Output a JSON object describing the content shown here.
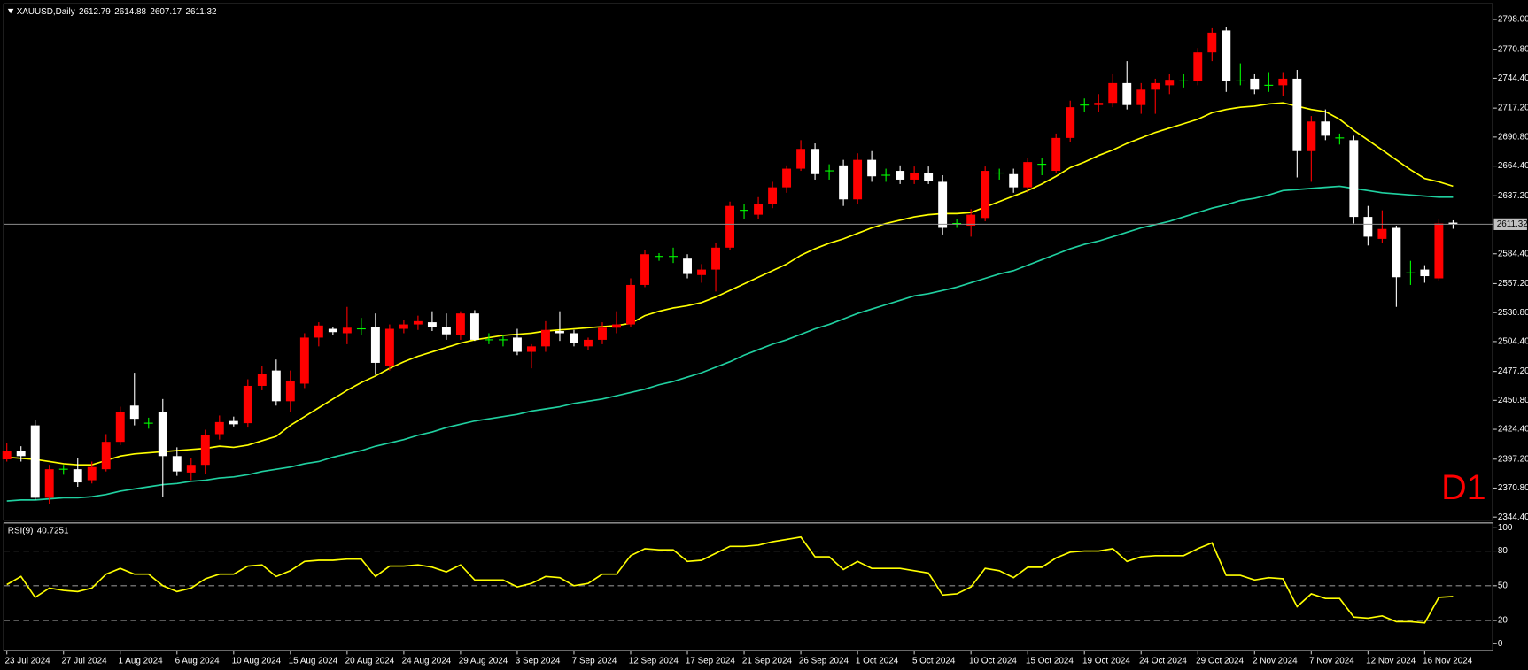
{
  "chart_data": [
    {
      "type": "candlestick",
      "title": "XAUUSD,Daily",
      "annotation": "D1",
      "up_color": "#ff0000",
      "down_color": "#ffffff",
      "doji_color": "#00ff00",
      "price_line_color": "#8c8c8c",
      "categories": [
        "23 Jul 2024",
        null,
        null,
        null,
        "27 Jul 2024",
        null,
        null,
        null,
        "1 Aug 2024",
        null,
        null,
        null,
        "6 Aug 2024",
        null,
        null,
        null,
        "10 Aug 2024",
        null,
        null,
        null,
        "15 Aug 2024",
        null,
        null,
        null,
        "20 Aug 2024",
        null,
        null,
        null,
        "24 Aug 2024",
        null,
        null,
        null,
        "29 Aug 2024",
        null,
        null,
        null,
        "3 Sep 2024",
        null,
        null,
        null,
        "7 Sep 2024",
        null,
        null,
        null,
        "12 Sep 2024",
        null,
        null,
        null,
        "17 Sep 2024",
        null,
        null,
        null,
        "21 Sep 2024",
        null,
        null,
        null,
        "26 Sep 2024",
        null,
        null,
        null,
        "1 Oct 2024",
        null,
        null,
        null,
        "5 Oct 2024",
        null,
        null,
        null,
        "10 Oct 2024",
        null,
        null,
        null,
        "15 Oct 2024",
        null,
        null,
        null,
        "19 Oct 2024",
        null,
        null,
        null,
        "24 Oct 2024",
        null,
        null,
        null,
        "29 Oct 2024",
        null,
        null,
        null,
        "2 Nov 2024",
        null,
        null,
        null,
        "7 Nov 2024",
        null,
        null,
        null,
        "12 Nov 2024",
        null,
        null,
        null,
        "16 Nov 2024",
        null,
        null
      ],
      "ohlc": [
        [
          2397,
          2412,
          2395,
          2405
        ],
        [
          2405,
          2409,
          2395,
          2400
        ],
        [
          2428,
          2433,
          2360,
          2362
        ],
        [
          2362,
          2392,
          2356,
          2388
        ],
        [
          2388,
          2392,
          2383,
          2388
        ],
        [
          2388,
          2398,
          2372,
          2376
        ],
        [
          2378,
          2395,
          2375,
          2390
        ],
        [
          2388,
          2420,
          2386,
          2413
        ],
        [
          2413,
          2445,
          2410,
          2440
        ],
        [
          2446,
          2476,
          2428,
          2434
        ],
        [
          2430,
          2435,
          2425,
          2430
        ],
        [
          2440,
          2452,
          2363,
          2400
        ],
        [
          2400,
          2408,
          2382,
          2386
        ],
        [
          2385,
          2398,
          2378,
          2392
        ],
        [
          2392,
          2424,
          2384,
          2419
        ],
        [
          2420,
          2437,
          2415,
          2431
        ],
        [
          2432,
          2436,
          2427,
          2429
        ],
        [
          2430,
          2470,
          2426,
          2464
        ],
        [
          2464,
          2482,
          2460,
          2475
        ],
        [
          2478,
          2488,
          2446,
          2450
        ],
        [
          2450,
          2478,
          2440,
          2468
        ],
        [
          2466,
          2512,
          2462,
          2508
        ],
        [
          2508,
          2522,
          2500,
          2519
        ],
        [
          2516,
          2518,
          2510,
          2513
        ],
        [
          2512,
          2536,
          2502,
          2517
        ],
        [
          2516,
          2526,
          2510,
          2516
        ],
        [
          2518,
          2530,
          2474,
          2485
        ],
        [
          2482,
          2520,
          2478,
          2516
        ],
        [
          2516,
          2524,
          2512,
          2520
        ],
        [
          2520,
          2528,
          2515,
          2523
        ],
        [
          2522,
          2532,
          2514,
          2518
        ],
        [
          2518,
          2530,
          2506,
          2511
        ],
        [
          2510,
          2532,
          2506,
          2530
        ],
        [
          2530,
          2533,
          2505,
          2506
        ],
        [
          2506,
          2512,
          2502,
          2506
        ],
        [
          2506,
          2510,
          2500,
          2506
        ],
        [
          2508,
          2516,
          2492,
          2495
        ],
        [
          2495,
          2502,
          2480,
          2500
        ],
        [
          2500,
          2523,
          2495,
          2515
        ],
        [
          2514,
          2532,
          2505,
          2512
        ],
        [
          2512,
          2515,
          2500,
          2503
        ],
        [
          2500,
          2508,
          2497,
          2506
        ],
        [
          2506,
          2522,
          2502,
          2517
        ],
        [
          2517,
          2532,
          2512,
          2520
        ],
        [
          2520,
          2562,
          2518,
          2556
        ],
        [
          2556,
          2588,
          2554,
          2584
        ],
        [
          2582,
          2585,
          2578,
          2582
        ],
        [
          2582,
          2590,
          2576,
          2582
        ],
        [
          2580,
          2584,
          2562,
          2566
        ],
        [
          2565,
          2575,
          2558,
          2570
        ],
        [
          2570,
          2594,
          2550,
          2590
        ],
        [
          2590,
          2632,
          2588,
          2628
        ],
        [
          2624,
          2630,
          2616,
          2624
        ],
        [
          2620,
          2636,
          2616,
          2630
        ],
        [
          2630,
          2650,
          2626,
          2645
        ],
        [
          2645,
          2665,
          2640,
          2662
        ],
        [
          2662,
          2688,
          2660,
          2680
        ],
        [
          2680,
          2685,
          2652,
          2657
        ],
        [
          2660,
          2666,
          2652,
          2660
        ],
        [
          2665,
          2670,
          2628,
          2634
        ],
        [
          2634,
          2676,
          2630,
          2670
        ],
        [
          2670,
          2678,
          2650,
          2655
        ],
        [
          2656,
          2662,
          2650,
          2656
        ],
        [
          2660,
          2665,
          2648,
          2652
        ],
        [
          2652,
          2664,
          2648,
          2658
        ],
        [
          2658,
          2664,
          2648,
          2651
        ],
        [
          2650,
          2656,
          2602,
          2608
        ],
        [
          2612,
          2616,
          2608,
          2612
        ],
        [
          2610,
          2625,
          2600,
          2620
        ],
        [
          2617,
          2664,
          2614,
          2660
        ],
        [
          2658,
          2662,
          2652,
          2658
        ],
        [
          2657,
          2662,
          2640,
          2645
        ],
        [
          2645,
          2672,
          2640,
          2668
        ],
        [
          2666,
          2672,
          2656,
          2666
        ],
        [
          2660,
          2694,
          2658,
          2690
        ],
        [
          2690,
          2724,
          2686,
          2718
        ],
        [
          2720,
          2726,
          2714,
          2720
        ],
        [
          2720,
          2730,
          2714,
          2722
        ],
        [
          2722,
          2748,
          2718,
          2740
        ],
        [
          2740,
          2760,
          2716,
          2720
        ],
        [
          2720,
          2740,
          2712,
          2734
        ],
        [
          2734,
          2744,
          2712,
          2740
        ],
        [
          2738,
          2748,
          2730,
          2743
        ],
        [
          2742,
          2748,
          2736,
          2742
        ],
        [
          2742,
          2772,
          2738,
          2768
        ],
        [
          2768,
          2790,
          2760,
          2786
        ],
        [
          2788,
          2791,
          2732,
          2742
        ],
        [
          2742,
          2758,
          2738,
          2742
        ],
        [
          2744,
          2748,
          2730,
          2734
        ],
        [
          2738,
          2750,
          2732,
          2738
        ],
        [
          2738,
          2750,
          2728,
          2744
        ],
        [
          2744,
          2752,
          2654,
          2678
        ],
        [
          2678,
          2710,
          2650,
          2705
        ],
        [
          2705,
          2716,
          2688,
          2692
        ],
        [
          2690,
          2694,
          2684,
          2690
        ],
        [
          2688,
          2692,
          2612,
          2618
        ],
        [
          2618,
          2628,
          2592,
          2600
        ],
        [
          2598,
          2624,
          2594,
          2607
        ],
        [
          2608,
          2610,
          2536,
          2563
        ],
        [
          2567,
          2578,
          2556,
          2567
        ],
        [
          2570,
          2574,
          2558,
          2564
        ],
        [
          2562,
          2616,
          2560,
          2612
        ],
        [
          2612.79,
          2614.88,
          2607.17,
          2611.32
        ]
      ],
      "series": [
        {
          "color": "#ffff00",
          "values": [
            2399,
            2398,
            2397,
            2395,
            2393,
            2392,
            2392,
            2396,
            2400,
            2402,
            2403,
            2404,
            2405,
            2406,
            2407,
            2409,
            2408,
            2410,
            2414,
            2418,
            2428,
            2436,
            2444,
            2452,
            2460,
            2467,
            2473,
            2480,
            2486,
            2491,
            2495,
            2499,
            2503,
            2506,
            2508,
            2510,
            2511,
            2512,
            2514,
            2515,
            2516,
            2517,
            2518,
            2519,
            2521,
            2528,
            2532,
            2535,
            2537,
            2540,
            2545,
            2551,
            2557,
            2563,
            2569,
            2575,
            2583,
            2589,
            2594,
            2598,
            2603,
            2608,
            2612,
            2615,
            2618,
            2620,
            2621,
            2621,
            2622,
            2627,
            2632,
            2637,
            2642,
            2648,
            2655,
            2663,
            2668,
            2674,
            2679,
            2685,
            2690,
            2695,
            2699,
            2703,
            2707,
            2713,
            2716,
            2718,
            2719,
            2721,
            2722,
            2719,
            2716,
            2714,
            2707,
            2697,
            2688,
            2679,
            2670,
            2661,
            2653,
            2650,
            2646
          ]
        },
        {
          "color": "#20d0a0",
          "values": [
            2359,
            2360,
            2360,
            2361,
            2362,
            2362,
            2363,
            2365,
            2368,
            2370,
            2372,
            2374,
            2375,
            2377,
            2378,
            2380,
            2381,
            2383,
            2386,
            2388,
            2390,
            2393,
            2395,
            2399,
            2402,
            2405,
            2409,
            2412,
            2415,
            2419,
            2422,
            2426,
            2429,
            2432,
            2434,
            2436,
            2438,
            2441,
            2443,
            2445,
            2448,
            2450,
            2452,
            2455,
            2458,
            2461,
            2465,
            2468,
            2472,
            2476,
            2481,
            2486,
            2492,
            2497,
            2502,
            2506,
            2511,
            2516,
            2520,
            2525,
            2530,
            2534,
            2538,
            2542,
            2546,
            2548,
            2551,
            2554,
            2558,
            2562,
            2566,
            2569,
            2574,
            2579,
            2584,
            2589,
            2593,
            2596,
            2600,
            2604,
            2608,
            2611,
            2614,
            2618,
            2622,
            2626,
            2629,
            2633,
            2635,
            2638,
            2642,
            2643,
            2644,
            2645,
            2646,
            2644,
            2642,
            2640,
            2639,
            2638,
            2637,
            2636,
            2636
          ]
        }
      ],
      "ylim": [
        2341.7,
        2812.2
      ],
      "yticks": [
        {
          "value": 2344.4,
          "label": "2344.40"
        },
        {
          "value": 2370.8,
          "label": "2370.80"
        },
        {
          "value": 2397.2,
          "label": "2397.20"
        },
        {
          "value": 2424.4,
          "label": "2424.40"
        },
        {
          "value": 2450.8,
          "label": "2450.80"
        },
        {
          "value": 2477.2,
          "label": "2477.20"
        },
        {
          "value": 2504.4,
          "label": "2504.40"
        },
        {
          "value": 2530.8,
          "label": "2530.80"
        },
        {
          "value": 2557.2,
          "label": "2557.20"
        },
        {
          "value": 2584.4,
          "label": "2584.40"
        },
        {
          "value": 2637.2,
          "label": "2637.20"
        },
        {
          "value": 2664.4,
          "label": "2664.40"
        },
        {
          "value": 2690.8,
          "label": "2690.80"
        },
        {
          "value": 2717.2,
          "label": "2717.20"
        },
        {
          "value": 2744.4,
          "label": "2744.40"
        },
        {
          "value": 2770.8,
          "label": "2770.80"
        },
        {
          "value": 2798.0,
          "label": "2798.00"
        }
      ]
    },
    {
      "type": "line",
      "title": "RSI(9)",
      "color": "#ffff00",
      "level_color": "#8c8c8c",
      "values": [
        51,
        58,
        40,
        48,
        46,
        45,
        48,
        60,
        65,
        60,
        60,
        50,
        45,
        48,
        56,
        60,
        60,
        67,
        68,
        58,
        63,
        71,
        72,
        72,
        73,
        73,
        58,
        67,
        67,
        68,
        66,
        62,
        68,
        55,
        55,
        55,
        49,
        52,
        58,
        57,
        50,
        52,
        60,
        60,
        76,
        82,
        81,
        81,
        71,
        72,
        78,
        84,
        84,
        85,
        88,
        90,
        92,
        75,
        75,
        64,
        71,
        65,
        65,
        65,
        63,
        61,
        42,
        43,
        49,
        65,
        63,
        57,
        66,
        66,
        74,
        79,
        80,
        80,
        82,
        71,
        75,
        76,
        76,
        76,
        82,
        87,
        59,
        59,
        55,
        57,
        56,
        32,
        43,
        39,
        39,
        23,
        22,
        24,
        19,
        19,
        18,
        40,
        40.7251
      ],
      "ylim": [
        -5.9,
        104.2
      ],
      "yticks": [
        0,
        20,
        50,
        80,
        100
      ],
      "levels": [
        20,
        50,
        80
      ]
    }
  ]
}
